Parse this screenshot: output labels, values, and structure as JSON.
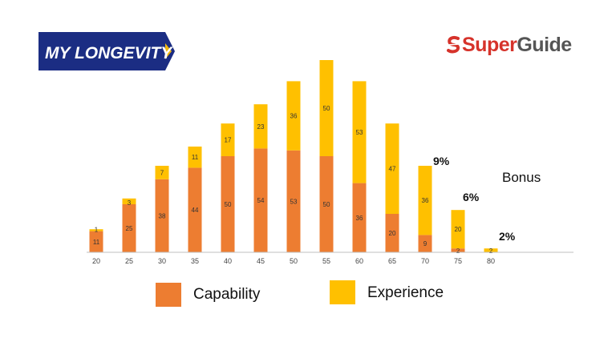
{
  "logos": {
    "left_text": "MY LONGEVITY",
    "right_text_super": "Super",
    "right_text_guide": "Guide"
  },
  "colors": {
    "capability": "#ed7d31",
    "experience": "#ffc000",
    "logo_navy": "#1b2d83",
    "logo_gold": "#f1b80f",
    "axis": "#bfbfbf"
  },
  "chart_data": {
    "type": "bar",
    "stacked": true,
    "categories": [
      "20",
      "25",
      "30",
      "35",
      "40",
      "45",
      "50",
      "55",
      "60",
      "65",
      "70",
      "75",
      "80"
    ],
    "series": [
      {
        "name": "Capability",
        "values": [
          11,
          25,
          38,
          44,
          50,
          54,
          53,
          50,
          36,
          20,
          9,
          2,
          0
        ]
      },
      {
        "name": "Experience",
        "values": [
          1,
          3,
          7,
          11,
          17,
          23,
          36,
          50,
          53,
          47,
          36,
          20,
          2
        ]
      }
    ],
    "ylim": [
      0,
      100
    ],
    "grid": false,
    "legend": "bottom",
    "annotations": [
      {
        "text": "Bonus"
      },
      {
        "text": "9%"
      },
      {
        "text": "6%"
      },
      {
        "text": "2%"
      }
    ]
  }
}
